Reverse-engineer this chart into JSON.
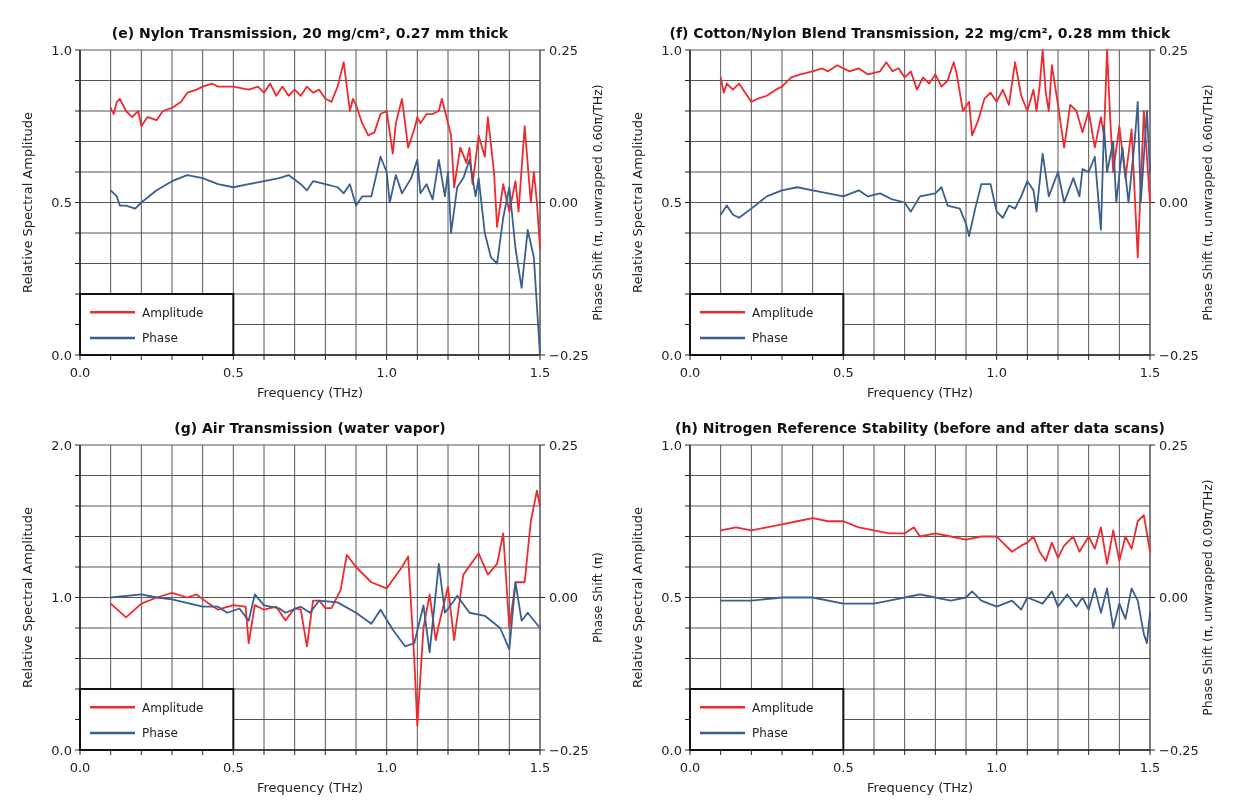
{
  "chart_data": [
    {
      "type": "line",
      "title": "(e) Nylon Transmission, 20 mg/cm², 0.27 mm thick",
      "xlabel": "Frequency (THz)",
      "ylabel": "Relative Spectral Amplitude",
      "y2label": "Phase Shift (π, unwrapped 0.60π/THz)",
      "xlim": [
        0,
        1.5
      ],
      "ylim": [
        0,
        1
      ],
      "y2lim": [
        -0.25,
        0.25
      ],
      "xticks": [
        {
          "value": 0,
          "label": "0.0"
        },
        {
          "value": 0.1,
          "label": null
        },
        {
          "value": 0.2,
          "label": null
        },
        {
          "value": 0.3,
          "label": null
        },
        {
          "value": 0.4,
          "label": null
        },
        {
          "value": 0.5,
          "label": "0.5"
        },
        {
          "value": 0.6,
          "label": null
        },
        {
          "value": 0.7,
          "label": null
        },
        {
          "value": 0.8,
          "label": null
        },
        {
          "value": 0.9,
          "label": null
        },
        {
          "value": 1,
          "label": "1.0"
        },
        {
          "value": 1.1,
          "label": null
        },
        {
          "value": 1.2,
          "label": null
        },
        {
          "value": 1.3,
          "label": null
        },
        {
          "value": 1.4,
          "label": null
        },
        {
          "value": 1.5,
          "label": "1.5"
        }
      ],
      "yticks": [
        {
          "value": 0,
          "label": "0.0"
        },
        {
          "value": 0.1,
          "label": null
        },
        {
          "value": 0.2,
          "label": null
        },
        {
          "value": 0.3,
          "label": null
        },
        {
          "value": 0.4,
          "label": null
        },
        {
          "value": 0.5,
          "label": "0.5"
        },
        {
          "value": 0.6,
          "label": null
        },
        {
          "value": 0.7,
          "label": null
        },
        {
          "value": 0.8,
          "label": null
        },
        {
          "value": 0.9,
          "label": null
        },
        {
          "value": 1,
          "label": "1.0"
        }
      ],
      "y2ticks": [
        {
          "value": -0.25,
          "label": "−0.25"
        },
        {
          "value": 0,
          "label": "0.00"
        },
        {
          "value": 0.25,
          "label": "0.25"
        }
      ],
      "grid": true,
      "legend": "bottom left",
      "series": [
        {
          "name": "Amplitude",
          "color": "#ee2a2f",
          "x": [
            0.1,
            0.11,
            0.12,
            0.13,
            0.15,
            0.17,
            0.19,
            0.2,
            0.22,
            0.25,
            0.27,
            0.3,
            0.33,
            0.35,
            0.38,
            0.4,
            0.43,
            0.45,
            0.5,
            0.55,
            0.58,
            0.6,
            0.62,
            0.64,
            0.66,
            0.68,
            0.7,
            0.72,
            0.74,
            0.76,
            0.78,
            0.8,
            0.82,
            0.84,
            0.86,
            0.87,
            0.88,
            0.89,
            0.9,
            0.92,
            0.94,
            0.96,
            0.98,
            1.0,
            1.02,
            1.03,
            1.05,
            1.07,
            1.09,
            1.1,
            1.11,
            1.13,
            1.15,
            1.17,
            1.18,
            1.19,
            1.21,
            1.22,
            1.24,
            1.26,
            1.27,
            1.28,
            1.3,
            1.32,
            1.33,
            1.35,
            1.36,
            1.38,
            1.4,
            1.42,
            1.43,
            1.45,
            1.47,
            1.48,
            1.49,
            1.5
          ],
          "values": [
            0.81,
            0.79,
            0.83,
            0.84,
            0.8,
            0.78,
            0.8,
            0.75,
            0.78,
            0.77,
            0.8,
            0.81,
            0.83,
            0.86,
            0.87,
            0.88,
            0.89,
            0.88,
            0.88,
            0.87,
            0.88,
            0.86,
            0.89,
            0.85,
            0.88,
            0.85,
            0.87,
            0.85,
            0.88,
            0.86,
            0.87,
            0.84,
            0.83,
            0.88,
            0.96,
            0.88,
            0.8,
            0.84,
            0.82,
            0.76,
            0.72,
            0.73,
            0.79,
            0.8,
            0.66,
            0.76,
            0.84,
            0.68,
            0.74,
            0.78,
            0.76,
            0.79,
            0.79,
            0.8,
            0.84,
            0.8,
            0.72,
            0.55,
            0.68,
            0.63,
            0.68,
            0.56,
            0.72,
            0.65,
            0.78,
            0.6,
            0.42,
            0.56,
            0.47,
            0.57,
            0.47,
            0.75,
            0.5,
            0.6,
            0.5,
            0.35
          ]
        },
        {
          "name": "Phase",
          "color": "#3a5f8f",
          "axis": "y2",
          "x": [
            0.1,
            0.12,
            0.13,
            0.15,
            0.18,
            0.2,
            0.25,
            0.3,
            0.35,
            0.4,
            0.45,
            0.5,
            0.55,
            0.6,
            0.65,
            0.68,
            0.72,
            0.74,
            0.76,
            0.8,
            0.84,
            0.86,
            0.88,
            0.9,
            0.92,
            0.95,
            0.98,
            1.0,
            1.01,
            1.03,
            1.05,
            1.08,
            1.1,
            1.11,
            1.13,
            1.15,
            1.17,
            1.19,
            1.2,
            1.21,
            1.23,
            1.25,
            1.27,
            1.29,
            1.3,
            1.32,
            1.34,
            1.36,
            1.38,
            1.4,
            1.42,
            1.44,
            1.46,
            1.48,
            1.5
          ],
          "values": [
            0.02,
            0.01,
            -0.005,
            -0.005,
            -0.01,
            0,
            0.02,
            0.035,
            0.045,
            0.04,
            0.03,
            0.025,
            0.03,
            0.035,
            0.04,
            0.045,
            0.03,
            0.02,
            0.035,
            0.03,
            0.025,
            0.015,
            0.03,
            -0.005,
            0.01,
            0.01,
            0.075,
            0.05,
            0,
            0.045,
            0.015,
            0.04,
            0.07,
            0.015,
            0.03,
            0.005,
            0.07,
            0.01,
            0.05,
            -0.05,
            0.025,
            0.04,
            0.07,
            0.01,
            0.04,
            -0.05,
            -0.09,
            -0.1,
            -0.025,
            0.025,
            -0.075,
            -0.14,
            -0.045,
            -0.09,
            -0.25
          ]
        }
      ]
    },
    {
      "type": "line",
      "title": "(f) Cotton/Nylon Blend Transmission, 22 mg/cm², 0.28 mm thick",
      "xlabel": "Frequency (THz)",
      "ylabel": "Relative Spectral Amplitude",
      "y2label": "Phase Shift (π, unwrapped 0.60π/THz)",
      "xlim": [
        0,
        1.5
      ],
      "ylim": [
        0,
        1
      ],
      "y2lim": [
        -0.25,
        0.25
      ],
      "xticks": [
        {
          "value": 0,
          "label": "0.0"
        },
        {
          "value": 0.1,
          "label": null
        },
        {
          "value": 0.2,
          "label": null
        },
        {
          "value": 0.3,
          "label": null
        },
        {
          "value": 0.4,
          "label": null
        },
        {
          "value": 0.5,
          "label": "0.5"
        },
        {
          "value": 0.6,
          "label": null
        },
        {
          "value": 0.7,
          "label": null
        },
        {
          "value": 0.8,
          "label": null
        },
        {
          "value": 0.9,
          "label": null
        },
        {
          "value": 1,
          "label": "1.0"
        },
        {
          "value": 1.1,
          "label": null
        },
        {
          "value": 1.2,
          "label": null
        },
        {
          "value": 1.3,
          "label": null
        },
        {
          "value": 1.4,
          "label": null
        },
        {
          "value": 1.5,
          "label": "1.5"
        }
      ],
      "yticks": [
        {
          "value": 0,
          "label": "0.0"
        },
        {
          "value": 0.1,
          "label": null
        },
        {
          "value": 0.2,
          "label": null
        },
        {
          "value": 0.3,
          "label": null
        },
        {
          "value": 0.4,
          "label": null
        },
        {
          "value": 0.5,
          "label": "0.5"
        },
        {
          "value": 0.6,
          "label": null
        },
        {
          "value": 0.7,
          "label": null
        },
        {
          "value": 0.8,
          "label": null
        },
        {
          "value": 0.9,
          "label": null
        },
        {
          "value": 1,
          "label": "1.0"
        }
      ],
      "y2ticks": [
        {
          "value": -0.25,
          "label": "−0.25"
        },
        {
          "value": 0,
          "label": "0.00"
        },
        {
          "value": 0.25,
          "label": "0.25"
        }
      ],
      "grid": true,
      "legend": "bottom left",
      "series": [
        {
          "name": "Amplitude",
          "color": "#ee2a2f",
          "x": [
            0.1,
            0.11,
            0.12,
            0.14,
            0.16,
            0.18,
            0.2,
            0.22,
            0.25,
            0.28,
            0.3,
            0.33,
            0.36,
            0.4,
            0.43,
            0.45,
            0.48,
            0.52,
            0.55,
            0.58,
            0.62,
            0.64,
            0.66,
            0.68,
            0.7,
            0.72,
            0.74,
            0.76,
            0.78,
            0.8,
            0.82,
            0.84,
            0.86,
            0.87,
            0.89,
            0.91,
            0.92,
            0.94,
            0.96,
            0.98,
            1.0,
            1.02,
            1.04,
            1.06,
            1.08,
            1.1,
            1.12,
            1.13,
            1.14,
            1.15,
            1.16,
            1.17,
            1.18,
            1.2,
            1.22,
            1.24,
            1.26,
            1.28,
            1.3,
            1.32,
            1.34,
            1.35,
            1.36,
            1.37,
            1.38,
            1.4,
            1.42,
            1.44,
            1.46,
            1.48,
            1.5
          ],
          "values": [
            0.91,
            0.86,
            0.89,
            0.87,
            0.89,
            0.86,
            0.83,
            0.84,
            0.85,
            0.87,
            0.88,
            0.91,
            0.92,
            0.93,
            0.94,
            0.93,
            0.95,
            0.93,
            0.94,
            0.92,
            0.93,
            0.96,
            0.93,
            0.94,
            0.91,
            0.93,
            0.87,
            0.91,
            0.89,
            0.92,
            0.88,
            0.9,
            0.96,
            0.92,
            0.8,
            0.83,
            0.72,
            0.77,
            0.84,
            0.86,
            0.83,
            0.87,
            0.82,
            0.96,
            0.85,
            0.8,
            0.87,
            0.8,
            0.88,
            1.0,
            0.86,
            0.8,
            0.95,
            0.82,
            0.68,
            0.82,
            0.8,
            0.73,
            0.8,
            0.68,
            0.78,
            0.72,
            1.0,
            0.78,
            0.6,
            0.75,
            0.58,
            0.74,
            0.32,
            0.8,
            0.5
          ]
        },
        {
          "name": "Phase",
          "color": "#3a5f8f",
          "axis": "y2",
          "x": [
            0.1,
            0.12,
            0.14,
            0.16,
            0.2,
            0.25,
            0.3,
            0.35,
            0.4,
            0.45,
            0.5,
            0.55,
            0.58,
            0.62,
            0.66,
            0.7,
            0.72,
            0.75,
            0.8,
            0.82,
            0.84,
            0.88,
            0.9,
            0.91,
            0.93,
            0.95,
            0.98,
            1.0,
            1.02,
            1.04,
            1.06,
            1.08,
            1.1,
            1.12,
            1.13,
            1.15,
            1.17,
            1.2,
            1.22,
            1.25,
            1.27,
            1.28,
            1.3,
            1.32,
            1.34,
            1.35,
            1.36,
            1.38,
            1.39,
            1.41,
            1.43,
            1.45,
            1.46,
            1.47,
            1.48,
            1.49,
            1.5
          ],
          "values": [
            -0.02,
            -0.005,
            -0.02,
            -0.025,
            -0.01,
            0.01,
            0.02,
            0.025,
            0.02,
            0.015,
            0.01,
            0.02,
            0.01,
            0.015,
            0.005,
            0,
            -0.015,
            0.01,
            0.015,
            0.025,
            -0.005,
            -0.01,
            -0.035,
            -0.055,
            -0.01,
            0.03,
            0.03,
            -0.015,
            -0.025,
            -0.005,
            -0.01,
            0.01,
            0.035,
            0.02,
            -0.015,
            0.08,
            0.01,
            0.05,
            0,
            0.04,
            0.01,
            0.055,
            0.05,
            0.075,
            -0.045,
            0.125,
            0.05,
            0.1,
            0,
            0.09,
            0,
            0.1,
            0.165,
            0,
            0.075,
            0.15,
            0.05
          ]
        }
      ]
    },
    {
      "type": "line",
      "title": "(g) Air Transmission (water vapor)",
      "xlabel": "Frequency (THz)",
      "ylabel": "Relative Spectral Amplitude",
      "y2label": "Phase Shift (π)",
      "xlim": [
        0,
        1.5
      ],
      "ylim": [
        0,
        2
      ],
      "y2lim": [
        -0.25,
        0.25
      ],
      "xticks": [
        {
          "value": 0,
          "label": "0.0"
        },
        {
          "value": 0.1,
          "label": null
        },
        {
          "value": 0.2,
          "label": null
        },
        {
          "value": 0.3,
          "label": null
        },
        {
          "value": 0.4,
          "label": null
        },
        {
          "value": 0.5,
          "label": "0.5"
        },
        {
          "value": 0.6,
          "label": null
        },
        {
          "value": 0.7,
          "label": null
        },
        {
          "value": 0.8,
          "label": null
        },
        {
          "value": 0.9,
          "label": null
        },
        {
          "value": 1,
          "label": "1.0"
        },
        {
          "value": 1.1,
          "label": null
        },
        {
          "value": 1.2,
          "label": null
        },
        {
          "value": 1.3,
          "label": null
        },
        {
          "value": 1.4,
          "label": null
        },
        {
          "value": 1.5,
          "label": "1.5"
        }
      ],
      "yticks": [
        {
          "value": 0,
          "label": "0.0"
        },
        {
          "value": 0.2,
          "label": null
        },
        {
          "value": 0.4,
          "label": null
        },
        {
          "value": 0.6,
          "label": null
        },
        {
          "value": 0.8,
          "label": null
        },
        {
          "value": 1,
          "label": "1.0"
        },
        {
          "value": 1.2,
          "label": null
        },
        {
          "value": 1.4,
          "label": null
        },
        {
          "value": 1.6,
          "label": null
        },
        {
          "value": 1.8,
          "label": null
        },
        {
          "value": 2,
          "label": "2.0"
        }
      ],
      "y2ticks": [
        {
          "value": -0.25,
          "label": "−0.25"
        },
        {
          "value": 0,
          "label": "0.00"
        },
        {
          "value": 0.25,
          "label": "0.25"
        }
      ],
      "grid": true,
      "legend": "bottom left",
      "series": [
        {
          "name": "Amplitude",
          "color": "#ee2a2f",
          "x": [
            0.1,
            0.15,
            0.2,
            0.25,
            0.3,
            0.35,
            0.38,
            0.42,
            0.45,
            0.5,
            0.54,
            0.55,
            0.57,
            0.6,
            0.64,
            0.67,
            0.7,
            0.72,
            0.74,
            0.76,
            0.78,
            0.8,
            0.82,
            0.85,
            0.87,
            0.9,
            0.95,
            1.0,
            1.05,
            1.07,
            1.09,
            1.1,
            1.12,
            1.14,
            1.16,
            1.17,
            1.2,
            1.22,
            1.25,
            1.3,
            1.33,
            1.36,
            1.38,
            1.4,
            1.42,
            1.45,
            1.47,
            1.49,
            1.5
          ],
          "values": [
            0.96,
            0.87,
            0.96,
            1.0,
            1.03,
            1.0,
            1.02,
            0.96,
            0.92,
            0.95,
            0.94,
            0.7,
            0.95,
            0.92,
            0.94,
            0.85,
            0.93,
            0.92,
            0.68,
            0.98,
            0.98,
            0.93,
            0.93,
            1.05,
            1.28,
            1.2,
            1.1,
            1.06,
            1.2,
            1.27,
            0.6,
            0.16,
            0.8,
            1.02,
            0.72,
            0.82,
            1.07,
            0.72,
            1.15,
            1.29,
            1.15,
            1.22,
            1.42,
            0.8,
            1.1,
            1.1,
            1.5,
            1.7,
            1.6
          ]
        },
        {
          "name": "Phase",
          "color": "#3a5f8f",
          "axis": "y2",
          "x": [
            0.1,
            0.2,
            0.25,
            0.3,
            0.4,
            0.45,
            0.48,
            0.52,
            0.55,
            0.57,
            0.6,
            0.65,
            0.67,
            0.72,
            0.75,
            0.78,
            0.84,
            0.9,
            0.95,
            0.98,
            1.02,
            1.06,
            1.09,
            1.12,
            1.14,
            1.17,
            1.19,
            1.22,
            1.23,
            1.27,
            1.32,
            1.37,
            1.4,
            1.42,
            1.44,
            1.46,
            1.5
          ],
          "values": [
            0,
            0.005,
            0,
            -0.003,
            -0.015,
            -0.015,
            -0.025,
            -0.018,
            -0.038,
            0.005,
            -0.013,
            -0.018,
            -0.025,
            -0.015,
            -0.025,
            -0.005,
            -0.008,
            -0.025,
            -0.043,
            -0.02,
            -0.053,
            -0.08,
            -0.075,
            -0.013,
            -0.09,
            0.055,
            -0.025,
            -0.005,
            0.003,
            -0.025,
            -0.03,
            -0.05,
            -0.085,
            0.025,
            -0.038,
            -0.025,
            -0.05
          ]
        }
      ]
    },
    {
      "type": "line",
      "title": "(h) Nitrogen Reference Stability (before and after data scans)",
      "xlabel": "Frequency (THz)",
      "ylabel": "Relative Spectral Amplitude",
      "y2label": "Phase Shift (π, unwrapped 0.09π/THz)",
      "xlim": [
        0,
        1.5
      ],
      "ylim": [
        0,
        1
      ],
      "y2lim": [
        -0.25,
        0.25
      ],
      "xticks": [
        {
          "value": 0,
          "label": "0.0"
        },
        {
          "value": 0.1,
          "label": null
        },
        {
          "value": 0.2,
          "label": null
        },
        {
          "value": 0.3,
          "label": null
        },
        {
          "value": 0.4,
          "label": null
        },
        {
          "value": 0.5,
          "label": "0.5"
        },
        {
          "value": 0.6,
          "label": null
        },
        {
          "value": 0.7,
          "label": null
        },
        {
          "value": 0.8,
          "label": null
        },
        {
          "value": 0.9,
          "label": null
        },
        {
          "value": 1,
          "label": "1.0"
        },
        {
          "value": 1.1,
          "label": null
        },
        {
          "value": 1.2,
          "label": null
        },
        {
          "value": 1.3,
          "label": null
        },
        {
          "value": 1.4,
          "label": null
        },
        {
          "value": 1.5,
          "label": "1.5"
        }
      ],
      "yticks": [
        {
          "value": 0,
          "label": "0.0"
        },
        {
          "value": 0.1,
          "label": null
        },
        {
          "value": 0.2,
          "label": null
        },
        {
          "value": 0.3,
          "label": null
        },
        {
          "value": 0.4,
          "label": null
        },
        {
          "value": 0.5,
          "label": "0.5"
        },
        {
          "value": 0.6,
          "label": null
        },
        {
          "value": 0.7,
          "label": null
        },
        {
          "value": 0.8,
          "label": null
        },
        {
          "value": 0.9,
          "label": null
        },
        {
          "value": 1,
          "label": "1.0"
        }
      ],
      "y2ticks": [
        {
          "value": -0.25,
          "label": "−0.25"
        },
        {
          "value": 0,
          "label": "0.00"
        },
        {
          "value": 0.25,
          "label": "0.25"
        }
      ],
      "grid": true,
      "legend": "bottom left",
      "series": [
        {
          "name": "Amplitude",
          "color": "#ee2a2f",
          "x": [
            0.1,
            0.15,
            0.2,
            0.25,
            0.3,
            0.35,
            0.4,
            0.45,
            0.5,
            0.55,
            0.6,
            0.65,
            0.7,
            0.73,
            0.75,
            0.8,
            0.85,
            0.9,
            0.95,
            1.0,
            1.02,
            1.05,
            1.08,
            1.1,
            1.12,
            1.14,
            1.16,
            1.18,
            1.2,
            1.22,
            1.25,
            1.27,
            1.3,
            1.32,
            1.34,
            1.36,
            1.38,
            1.4,
            1.42,
            1.44,
            1.46,
            1.48,
            1.5
          ],
          "values": [
            0.72,
            0.73,
            0.72,
            0.73,
            0.74,
            0.75,
            0.76,
            0.75,
            0.75,
            0.73,
            0.72,
            0.71,
            0.71,
            0.73,
            0.7,
            0.71,
            0.7,
            0.69,
            0.7,
            0.7,
            0.68,
            0.65,
            0.67,
            0.68,
            0.7,
            0.65,
            0.62,
            0.68,
            0.63,
            0.67,
            0.7,
            0.65,
            0.7,
            0.66,
            0.73,
            0.61,
            0.72,
            0.62,
            0.7,
            0.66,
            0.75,
            0.77,
            0.65
          ]
        },
        {
          "name": "Phase",
          "color": "#3a5f8f",
          "axis": "y2",
          "x": [
            0.1,
            0.2,
            0.3,
            0.4,
            0.5,
            0.55,
            0.6,
            0.65,
            0.7,
            0.75,
            0.8,
            0.85,
            0.9,
            0.92,
            0.95,
            1.0,
            1.05,
            1.08,
            1.1,
            1.15,
            1.18,
            1.2,
            1.23,
            1.26,
            1.28,
            1.3,
            1.32,
            1.34,
            1.36,
            1.38,
            1.4,
            1.42,
            1.44,
            1.46,
            1.48,
            1.49,
            1.5
          ],
          "values": [
            -0.005,
            -0.005,
            0,
            0,
            -0.01,
            -0.01,
            -0.01,
            -0.005,
            0,
            0.005,
            0,
            -0.005,
            0,
            0.01,
            -0.005,
            -0.015,
            -0.005,
            -0.02,
            0,
            -0.01,
            0.01,
            -0.015,
            0.005,
            -0.015,
            0,
            -0.02,
            0.015,
            -0.025,
            0.015,
            -0.05,
            -0.01,
            -0.035,
            0.015,
            -0.005,
            -0.06,
            -0.075,
            -0.025
          ]
        }
      ]
    }
  ]
}
